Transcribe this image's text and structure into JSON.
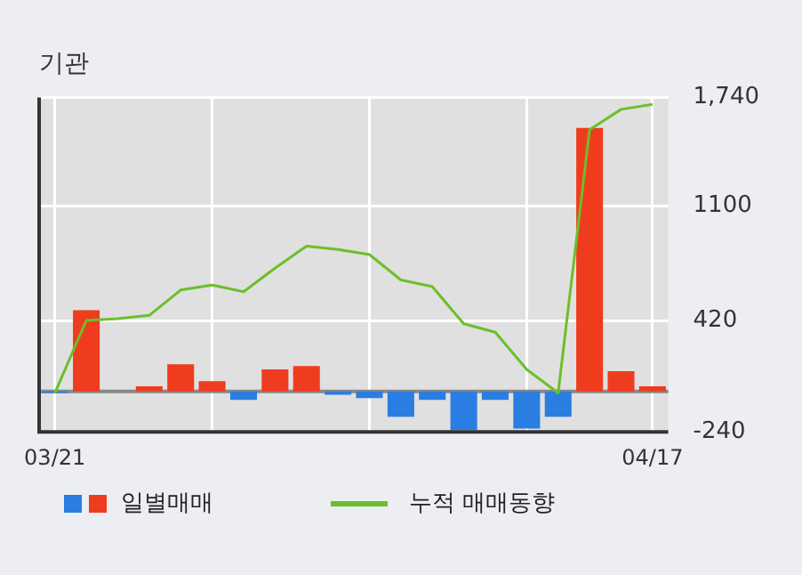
{
  "chart_data": {
    "type": "bar",
    "title": "기관",
    "categories": [
      "03/21",
      null,
      null,
      null,
      null,
      null,
      null,
      null,
      null,
      null,
      null,
      null,
      null,
      null,
      null,
      null,
      null,
      null,
      null,
      "04/17"
    ],
    "series": [
      {
        "name": "일별매매",
        "colors": [
          "#2a7de1",
          "#f03c1e",
          "#f03c1e",
          "#f03c1e",
          "#f03c1e",
          "#f03c1e",
          "#2a7de1",
          "#f03c1e",
          "#f03c1e",
          "#2a7de1",
          "#2a7de1",
          "#2a7de1",
          "#2a7de1",
          "#2a7de1",
          "#2a7de1",
          "#2a7de1",
          "#2a7de1",
          "#f03c1e",
          "#f03c1e",
          "#f03c1e"
        ],
        "values": [
          -10,
          480,
          0,
          30,
          160,
          60,
          -50,
          130,
          150,
          -20,
          -40,
          -150,
          -50,
          -230,
          -50,
          -220,
          -150,
          1560,
          120,
          30
        ]
      },
      {
        "name": "누적 매매동향",
        "type": "line",
        "color": "#6cbf2a",
        "values": [
          -10,
          420,
          430,
          450,
          600,
          630,
          590,
          730,
          860,
          840,
          810,
          660,
          620,
          400,
          350,
          130,
          -10,
          1550,
          1670,
          1700
        ]
      }
    ],
    "ylim": [
      -240,
      1740
    ],
    "yticks": [
      {
        "value": 1740,
        "label": "1,740"
      },
      1100,
      420,
      -240
    ],
    "grid": true,
    "legend": "bottom"
  }
}
